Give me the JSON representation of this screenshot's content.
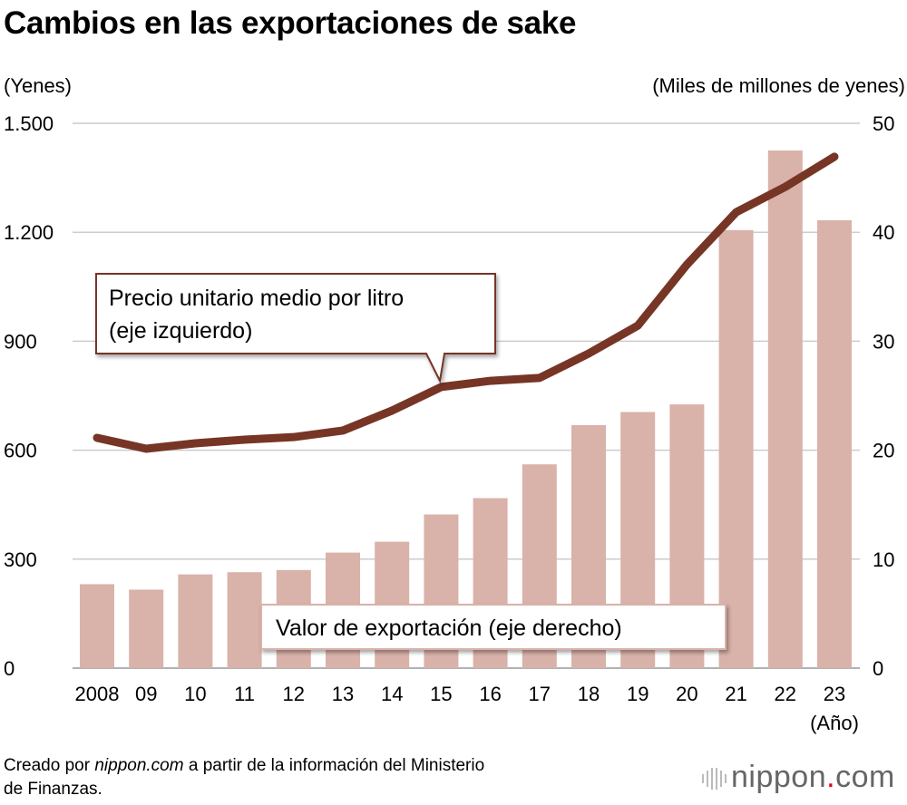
{
  "title": "Cambios en las exportaciones de sake",
  "source": {
    "prefix": "Creado por ",
    "site": "nippon.com",
    "rest": " a partir de la información del Ministerio",
    "line2": "de Finanzas."
  },
  "logo": {
    "name": "nippon",
    "dot": ".",
    "suffix": "com",
    "icon": "sound-bars-icon"
  },
  "colors": {
    "bar": "#d9b2a9",
    "line": "#773526",
    "grid": "#cccccc"
  },
  "chart_data": {
    "type": "bar+line",
    "title": "Cambios en las exportaciones de sake",
    "categories": [
      "2008",
      "09",
      "10",
      "11",
      "12",
      "13",
      "14",
      "15",
      "16",
      "17",
      "18",
      "19",
      "20",
      "21",
      "22",
      "23"
    ],
    "xlabel": "(Año)",
    "left_axis": {
      "label": "(Yenes)",
      "ylim": [
        0,
        1500
      ],
      "ticks": [
        0,
        300,
        600,
        900,
        1200,
        1500
      ],
      "tick_labels": [
        "0",
        "300",
        "600",
        "900",
        "1.200",
        "1.500"
      ]
    },
    "right_axis": {
      "label": "(Miles de millones de yenes)",
      "ylim": [
        0,
        50
      ],
      "ticks": [
        0,
        10,
        20,
        30,
        40,
        50
      ],
      "tick_labels": [
        "0",
        "10",
        "20",
        "30",
        "40",
        "50"
      ]
    },
    "grid": true,
    "series": [
      {
        "name": "Valor de exportación (eje derecho)",
        "type": "bar",
        "axis": "right",
        "values": [
          7.7,
          7.2,
          8.6,
          8.8,
          9.0,
          10.6,
          11.6,
          14.1,
          15.6,
          18.7,
          22.3,
          23.5,
          24.2,
          40.2,
          47.5,
          41.1
        ]
      },
      {
        "name": "Precio unitario medio por litro (eje izquierdo)",
        "name_lines": [
          "Precio unitario medio por litro",
          "(eje izquierdo)"
        ],
        "type": "line",
        "axis": "left",
        "values": [
          634,
          604,
          619,
          629,
          636,
          654,
          709,
          774,
          791,
          799,
          866,
          943,
          1111,
          1255,
          1325,
          1408
        ]
      }
    ]
  }
}
